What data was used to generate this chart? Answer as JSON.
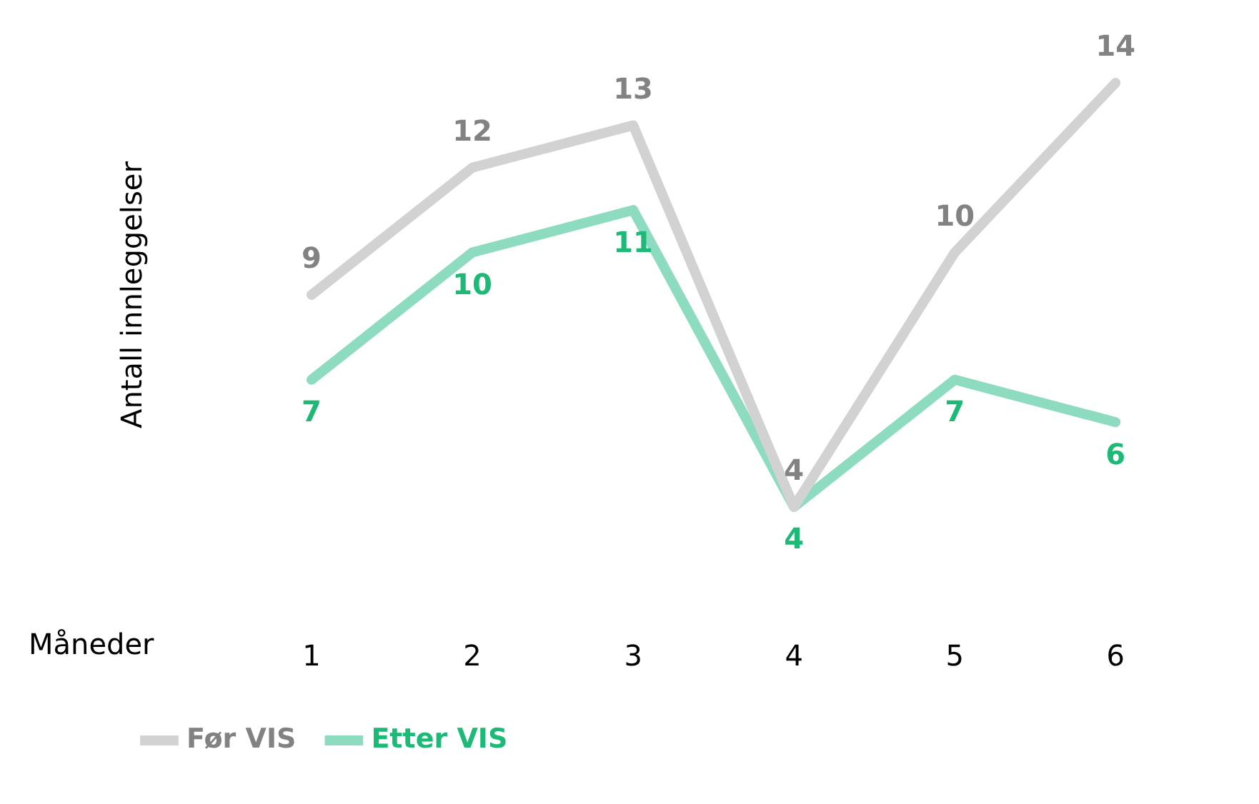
{
  "chart_data": {
    "type": "line",
    "xlabel": "Måneder",
    "ylabel": "Antall innleggelser",
    "categories": [
      "1",
      "2",
      "3",
      "4",
      "5",
      "6"
    ],
    "series": [
      {
        "name": "Før VIS",
        "color": "#d2d2d2",
        "values": [
          9,
          12,
          13,
          4,
          10,
          14
        ]
      },
      {
        "name": "Etter VIS",
        "color": "#8edcc0",
        "values": [
          7,
          10,
          11,
          4,
          7,
          6
        ]
      }
    ],
    "data_labels": true,
    "grid": false,
    "legend": "bottom left",
    "marker": "none",
    "line_style": "solid"
  }
}
